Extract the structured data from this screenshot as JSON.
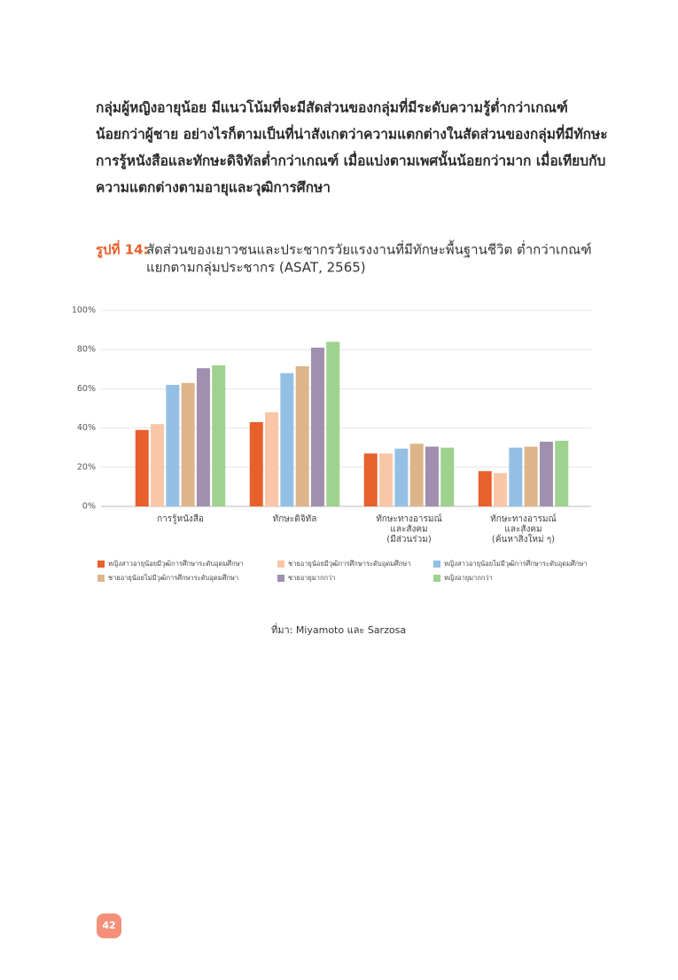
{
  "paragraph": [
    "กลุ่มผู้หญิงอายุน้อย มีแนวโน้มที่จะมีสัดส่วนของกลุ่มที่มีระดับความรู้ต่ำกว่าเกณฑ์",
    "น้อยกว่าผู้ชาย อย่างไรก็ตามเป็นที่น่าสังเกตว่าความแตกต่างในสัดส่วนของกลุ่มที่มีทักษะ",
    "การรู้หนังสือและทักษะดิจิทัลต่ำกว่าเกณฑ์ เมื่อแบ่งตามเพศนั้นน้อยกว่ามาก เมื่อเทียบกับ",
    "ความแตกต่างตามอายุและวุฒิการศึกษา"
  ],
  "figure": {
    "label": "รูปที่ 14:",
    "title": [
      "สัดส่วนของเยาวชนและประชากรวัยแรงงานที่มีทักษะพื้นฐานชีวิต ต่ำกว่าเกณฑ์",
      "แยกตามกลุ่มประชากร (ASAT, 2565)"
    ]
  },
  "chart_data": {
    "type": "bar",
    "categories": [
      [
        "การรู้หนังสือ"
      ],
      [
        "ทักษะดิจิทัล"
      ],
      [
        "ทักษะทางอารมณ์",
        "และสังคม",
        "(มีส่วนร่วม)"
      ],
      [
        "ทักษะทางอารมณ์",
        "และสังคม",
        "(ค้นหาสิ่งใหม่ ๆ)"
      ]
    ],
    "series": [
      {
        "name": "หญิงสาวอายุน้อยมีวุฒิการศึกษาระดับอุดมศึกษา",
        "color": "#e8602c",
        "values": [
          39,
          43,
          27,
          18
        ]
      },
      {
        "name": "ชายอายุน้อยมีวุฒิการศึกษาระดับอุดมศึกษา",
        "color": "#f9c6a8",
        "values": [
          42,
          48,
          27,
          17
        ]
      },
      {
        "name": "หญิงสาวอายุน้อยไม่มีวุฒิการศึกษาระดับอุดมศึกษา",
        "color": "#95c0e6",
        "values": [
          62,
          68,
          29.5,
          30
        ]
      },
      {
        "name": "ชายอายุน้อยไม่มีวุฒิการศึกษาระดับอุดมศึกษา",
        "color": "#deb58a",
        "values": [
          63,
          71.5,
          32,
          30.5
        ]
      },
      {
        "name": "ชายอายุมากกว่า",
        "color": "#a08fae",
        "values": [
          70.5,
          81,
          30.5,
          33
        ]
      },
      {
        "name": "หญิงอายุมากกว่า",
        "color": "#9fd18f",
        "values": [
          72,
          84,
          30,
          33.5
        ]
      }
    ],
    "ylim": [
      0,
      100
    ],
    "yticks": [
      {
        "value": 0,
        "label": "0%"
      },
      {
        "value": 20,
        "label": "20%"
      },
      {
        "value": 40,
        "label": "40%"
      },
      {
        "value": 60,
        "label": "60%"
      },
      {
        "value": 80,
        "label": "80%"
      },
      {
        "value": 100,
        "label": "100%"
      }
    ],
    "grid": true,
    "legend": "bottom"
  },
  "source": "ที่มา: Miyamoto และ Sarzosa",
  "page_number": "42"
}
